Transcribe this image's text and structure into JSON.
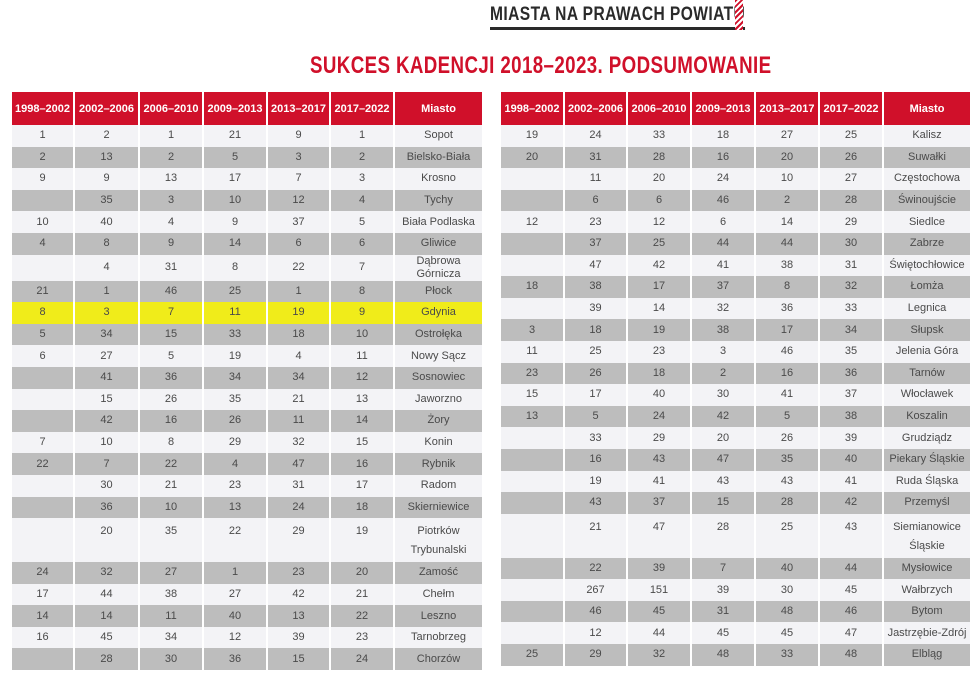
{
  "header": {
    "section": "MIASTA NA PRAWACH POWIATU",
    "title": "SUKCES KADENCJI 2018–2023. PODSUMOWANIE"
  },
  "columns": [
    "1998–2002",
    "2002–2006",
    "2006–2010",
    "2009–2013",
    "2013–2017",
    "2017–2022",
    "Miasto"
  ],
  "highlight_color": "#f0ec1a",
  "accent_color": "#d0102a",
  "left_rows": [
    [
      "1",
      "2",
      "1",
      "21",
      "9",
      "1",
      "Sopot"
    ],
    [
      "2",
      "13",
      "2",
      "5",
      "3",
      "2",
      "Bielsko-Biała"
    ],
    [
      "9",
      "9",
      "13",
      "17",
      "7",
      "3",
      "Krosno"
    ],
    [
      "",
      "35",
      "3",
      "10",
      "12",
      "4",
      "Tychy"
    ],
    [
      "10",
      "40",
      "4",
      "9",
      "37",
      "5",
      "Biała Podlaska"
    ],
    [
      "4",
      "8",
      "9",
      "14",
      "6",
      "6",
      "Gliwice"
    ],
    [
      "",
      "4",
      "31",
      "8",
      "22",
      "7",
      "Dąbrowa Górnicza"
    ],
    [
      "21",
      "1",
      "46",
      "25",
      "1",
      "8",
      "Płock"
    ],
    [
      "8",
      "3",
      "7",
      "11",
      "19",
      "9",
      "Gdynia"
    ],
    [
      "5",
      "34",
      "15",
      "33",
      "18",
      "10",
      "Ostrołęka"
    ],
    [
      "6",
      "27",
      "5",
      "19",
      "4",
      "11",
      "Nowy Sącz"
    ],
    [
      "",
      "41",
      "36",
      "34",
      "34",
      "12",
      "Sosnowiec"
    ],
    [
      "",
      "15",
      "26",
      "35",
      "21",
      "13",
      "Jaworzno"
    ],
    [
      "",
      "42",
      "16",
      "26",
      "11",
      "14",
      "Żory"
    ],
    [
      "7",
      "10",
      "8",
      "29",
      "32",
      "15",
      "Konin"
    ],
    [
      "22",
      "7",
      "22",
      "4",
      "47",
      "16",
      "Rybnik"
    ],
    [
      "",
      "30",
      "21",
      "23",
      "31",
      "17",
      "Radom"
    ],
    [
      "",
      "36",
      "10",
      "13",
      "24",
      "18",
      "Skierniewice"
    ],
    [
      "",
      "20",
      "35",
      "22",
      "29",
      "19",
      "Piotrków Trybunalski"
    ],
    [
      "24",
      "32",
      "27",
      "1",
      "23",
      "20",
      "Zamość"
    ],
    [
      "17",
      "44",
      "38",
      "27",
      "42",
      "21",
      "Chełm"
    ],
    [
      "14",
      "14",
      "11",
      "40",
      "13",
      "22",
      "Leszno"
    ],
    [
      "16",
      "45",
      "34",
      "12",
      "39",
      "23",
      "Tarnobrzeg"
    ],
    [
      "",
      "28",
      "30",
      "36",
      "15",
      "24",
      "Chorzów"
    ]
  ],
  "left_highlight_city": "Gdynia",
  "right_rows": [
    [
      "19",
      "24",
      "33",
      "18",
      "27",
      "25",
      "Kalisz"
    ],
    [
      "20",
      "31",
      "28",
      "16",
      "20",
      "26",
      "Suwałki"
    ],
    [
      "",
      "11",
      "20",
      "24",
      "10",
      "27",
      "Częstochowa"
    ],
    [
      "",
      "6",
      "6",
      "46",
      "2",
      "28",
      "Świnoujście"
    ],
    [
      "12",
      "23",
      "12",
      "6",
      "14",
      "29",
      "Siedlce"
    ],
    [
      "",
      "37",
      "25",
      "44",
      "44",
      "30",
      "Zabrze"
    ],
    [
      "",
      "47",
      "42",
      "41",
      "38",
      "31",
      "Świętochłowice"
    ],
    [
      "18",
      "38",
      "17",
      "37",
      "8",
      "32",
      "Łomża"
    ],
    [
      "",
      "39",
      "14",
      "32",
      "36",
      "33",
      "Legnica"
    ],
    [
      "3",
      "18",
      "19",
      "38",
      "17",
      "34",
      "Słupsk"
    ],
    [
      "11",
      "25",
      "23",
      "3",
      "46",
      "35",
      "Jelenia Góra"
    ],
    [
      "23",
      "26",
      "18",
      "2",
      "16",
      "36",
      "Tarnów"
    ],
    [
      "15",
      "17",
      "40",
      "30",
      "41",
      "37",
      "Włocławek"
    ],
    [
      "13",
      "5",
      "24",
      "42",
      "5",
      "38",
      "Koszalin"
    ],
    [
      "",
      "33",
      "29",
      "20",
      "26",
      "39",
      "Grudziądz"
    ],
    [
      "",
      "16",
      "43",
      "47",
      "35",
      "40",
      "Piekary Śląskie"
    ],
    [
      "",
      "19",
      "41",
      "43",
      "43",
      "41",
      "Ruda Śląska"
    ],
    [
      "",
      "43",
      "37",
      "15",
      "28",
      "42",
      "Przemyśl"
    ],
    [
      "",
      "21",
      "47",
      "28",
      "25",
      "43",
      "Siemianowice Śląskie"
    ],
    [
      "",
      "22",
      "39",
      "7",
      "40",
      "44",
      "Mysłowice"
    ],
    [
      "",
      "267",
      "151",
      "39",
      "30",
      "45",
      "Wałbrzych"
    ],
    [
      "",
      "46",
      "45",
      "31",
      "48",
      "46",
      "Bytom"
    ],
    [
      "",
      "12",
      "44",
      "45",
      "45",
      "47",
      "Jastrzębie-Zdrój"
    ],
    [
      "25",
      "29",
      "32",
      "48",
      "33",
      "48",
      "Elbląg"
    ]
  ]
}
